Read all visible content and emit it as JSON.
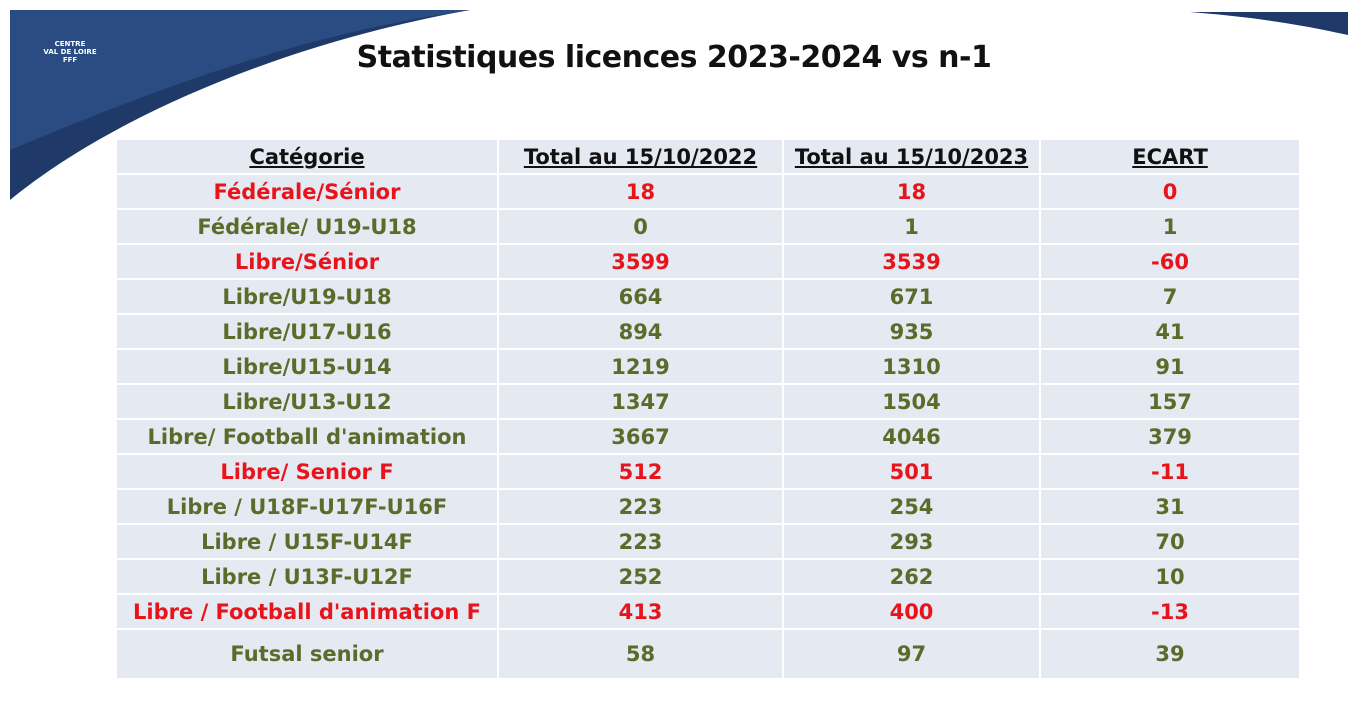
{
  "logo": {
    "lines": [
      "CENTRE",
      "VAL DE LOIRE",
      "FFF"
    ]
  },
  "title": "Statistiques licences 2023-2024 vs n-1",
  "table": {
    "header": [
      "Catégorie",
      "Total au 15/10/2022",
      "Total au 15/10/2023",
      "ECART"
    ],
    "rows": [
      {
        "cells": [
          "Fédérale/Sénior",
          18,
          18,
          0
        ],
        "color": "#e8141c"
      },
      {
        "cells": [
          "Fédérale/ U19-U18",
          0,
          1,
          1
        ],
        "color": "#5a6b2a"
      },
      {
        "cells": [
          "Libre/Sénior",
          3599,
          3539,
          -60
        ],
        "color": "#e8141c"
      },
      {
        "cells": [
          "Libre/U19-U18",
          664,
          671,
          7
        ],
        "color": "#5a6b2a"
      },
      {
        "cells": [
          "Libre/U17-U16",
          894,
          935,
          41
        ],
        "color": "#5a6b2a"
      },
      {
        "cells": [
          "Libre/U15-U14",
          1219,
          1310,
          91
        ],
        "color": "#5a6b2a"
      },
      {
        "cells": [
          "Libre/U13-U12",
          1347,
          1504,
          157
        ],
        "color": "#5a6b2a"
      },
      {
        "cells": [
          "Libre/ Football d'animation",
          3667,
          4046,
          379
        ],
        "color": "#5a6b2a"
      },
      {
        "cells": [
          "Libre/ Senior F",
          512,
          501,
          -11
        ],
        "color": "#e8141c"
      },
      {
        "cells": [
          "Libre / U18F-U17F-U16F",
          223,
          254,
          31
        ],
        "color": "#5a6b2a"
      },
      {
        "cells": [
          "Libre / U15F-U14F",
          223,
          293,
          70
        ],
        "color": "#5a6b2a"
      },
      {
        "cells": [
          "Libre / U13F-U12F",
          252,
          262,
          10
        ],
        "color": "#5a6b2a"
      },
      {
        "cells": [
          "Libre / Football d'animation F",
          413,
          400,
          -13
        ],
        "color": "#e8141c"
      },
      {
        "cells": [
          "Futsal senior",
          58,
          97,
          39
        ],
        "color": "#5a6b2a"
      }
    ]
  }
}
